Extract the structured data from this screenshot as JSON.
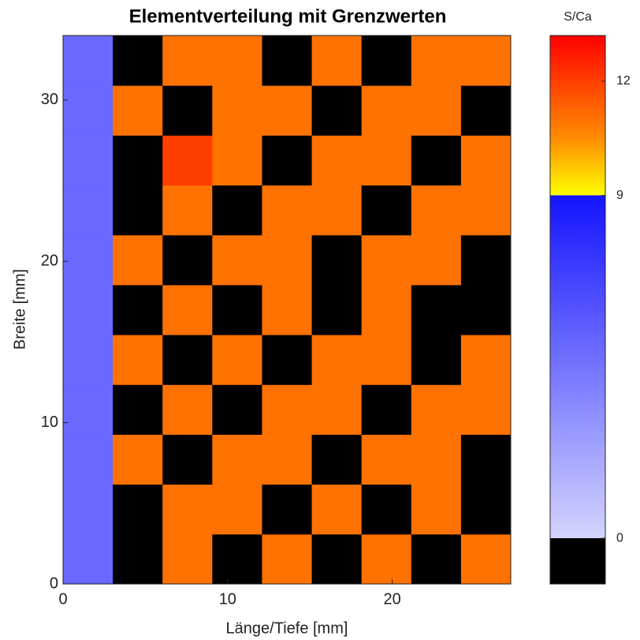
{
  "chart_data": {
    "type": "heatmap",
    "title": "Elementverteilung mit Grenzwerten",
    "xlabel": "Länge/Tiefe [mm]",
    "ylabel": "Breite [mm]",
    "xlim": [
      0,
      27.2
    ],
    "ylim": [
      0,
      34
    ],
    "xticks": [
      0,
      10,
      20
    ],
    "yticks": [
      0,
      10,
      20,
      30
    ],
    "z": [
      [
        5,
        -1,
        11,
        -1,
        11,
        -1,
        11,
        -1,
        11
      ],
      [
        5,
        -1,
        11,
        11,
        -1,
        11,
        -1,
        11,
        -1
      ],
      [
        5,
        11,
        -1,
        11,
        11,
        -1,
        11,
        11,
        -1
      ],
      [
        5,
        -1,
        11,
        -1,
        11,
        11,
        -1,
        11,
        11
      ],
      [
        5,
        11,
        -1,
        11,
        -1,
        11,
        11,
        -1,
        11
      ],
      [
        5,
        -1,
        11,
        -1,
        11,
        -1,
        11,
        -1,
        -1
      ],
      [
        5,
        11,
        -1,
        11,
        11,
        -1,
        11,
        11,
        -1
      ],
      [
        5,
        -1,
        11,
        -1,
        11,
        11,
        -1,
        11,
        11
      ],
      [
        5,
        -1,
        12,
        11,
        -1,
        11,
        11,
        -1,
        11
      ],
      [
        5,
        11,
        -1,
        11,
        11,
        -1,
        11,
        11,
        -1
      ],
      [
        5,
        -1,
        11,
        11,
        -1,
        11,
        -1,
        11,
        11
      ]
    ],
    "colorbar": {
      "label": "S/Ca",
      "clim": [
        -1.2,
        13.2
      ],
      "ticks": [
        0,
        9,
        12
      ],
      "colormap": [
        {
          "value": -1.2,
          "color": "#000000"
        },
        {
          "value": 0,
          "color": "#000000"
        },
        {
          "value": 0,
          "color": "#d4d4ff"
        },
        {
          "value": 9,
          "color": "#1414ff"
        },
        {
          "value": 9,
          "color": "#ffff00"
        },
        {
          "value": 10.5,
          "color": "#ff8c00"
        },
        {
          "value": 13.2,
          "color": "#ff0000"
        }
      ]
    }
  }
}
